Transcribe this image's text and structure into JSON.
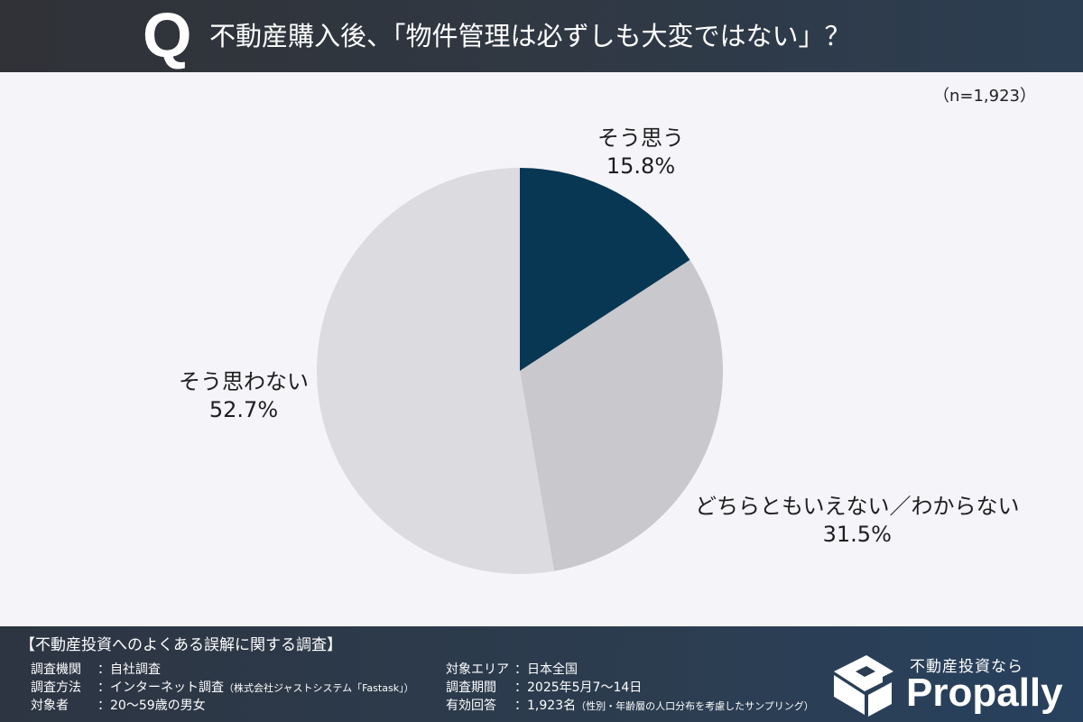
{
  "header": {
    "q_mark": "Q",
    "title": "不動産購入後、「物件管理は必ずしも大変ではない」？"
  },
  "sample_size": "（n=1,923）",
  "chart_data": {
    "type": "pie",
    "title": "不動産購入後、「物件管理は必ずしも大変ではない」？",
    "n": 1923,
    "start_angle": "12 o'clock, clockwise",
    "slices": [
      {
        "label": "そう思う",
        "value": 15.8,
        "display": "15.8%",
        "color": "#083753"
      },
      {
        "label": "どちらともいえない／わからない",
        "value": 31.5,
        "display": "31.5%",
        "color": "#c9c8cc"
      },
      {
        "label": "そう思わない",
        "value": 52.7,
        "display": "52.7%",
        "color": "#dcdbe0"
      }
    ]
  },
  "footer": {
    "survey_title": "【不動産投資へのよくある誤解に関する調査】",
    "left_rows": [
      {
        "key": "調査機関",
        "value": "：自社調査",
        "note": ""
      },
      {
        "key": "調査方法",
        "value": "：インターネット調査",
        "note": "（株式会社ジャストシステム「Fastask」）"
      },
      {
        "key": "対象者",
        "value": "：20〜59歳の男女",
        "note": ""
      }
    ],
    "right_rows": [
      {
        "key": "対象エリア",
        "value": "：日本全国",
        "note": ""
      },
      {
        "key": "調査期間",
        "value": "：2025年5月7〜14日",
        "note": ""
      },
      {
        "key": "有効回答",
        "value": "：1,923名",
        "note": "（性別・年齢層の人口分布を考慮したサンプリング）"
      }
    ],
    "logo": {
      "tagline": "不動産投資なら",
      "name": "Propally"
    }
  }
}
